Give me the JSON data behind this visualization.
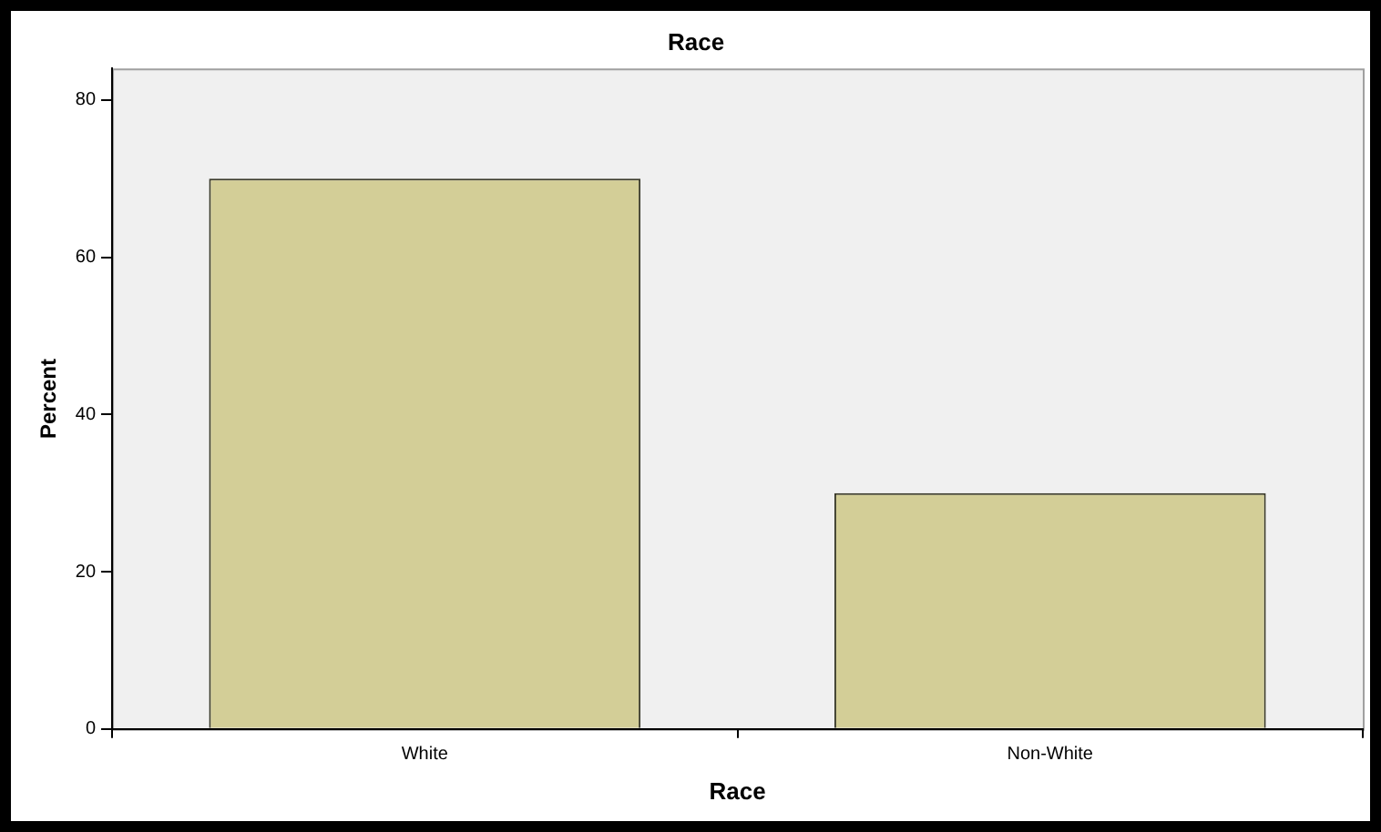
{
  "chart_data": {
    "type": "bar",
    "title": "Race",
    "xlabel": "Race",
    "ylabel": "Percent",
    "categories": [
      "White",
      "Non-White"
    ],
    "values": [
      70,
      30
    ],
    "color": "#d3ce97",
    "ylim": [
      0,
      84
    ],
    "yticks": [
      0,
      20,
      40,
      60,
      80
    ],
    "grid": false,
    "legend": false
  }
}
